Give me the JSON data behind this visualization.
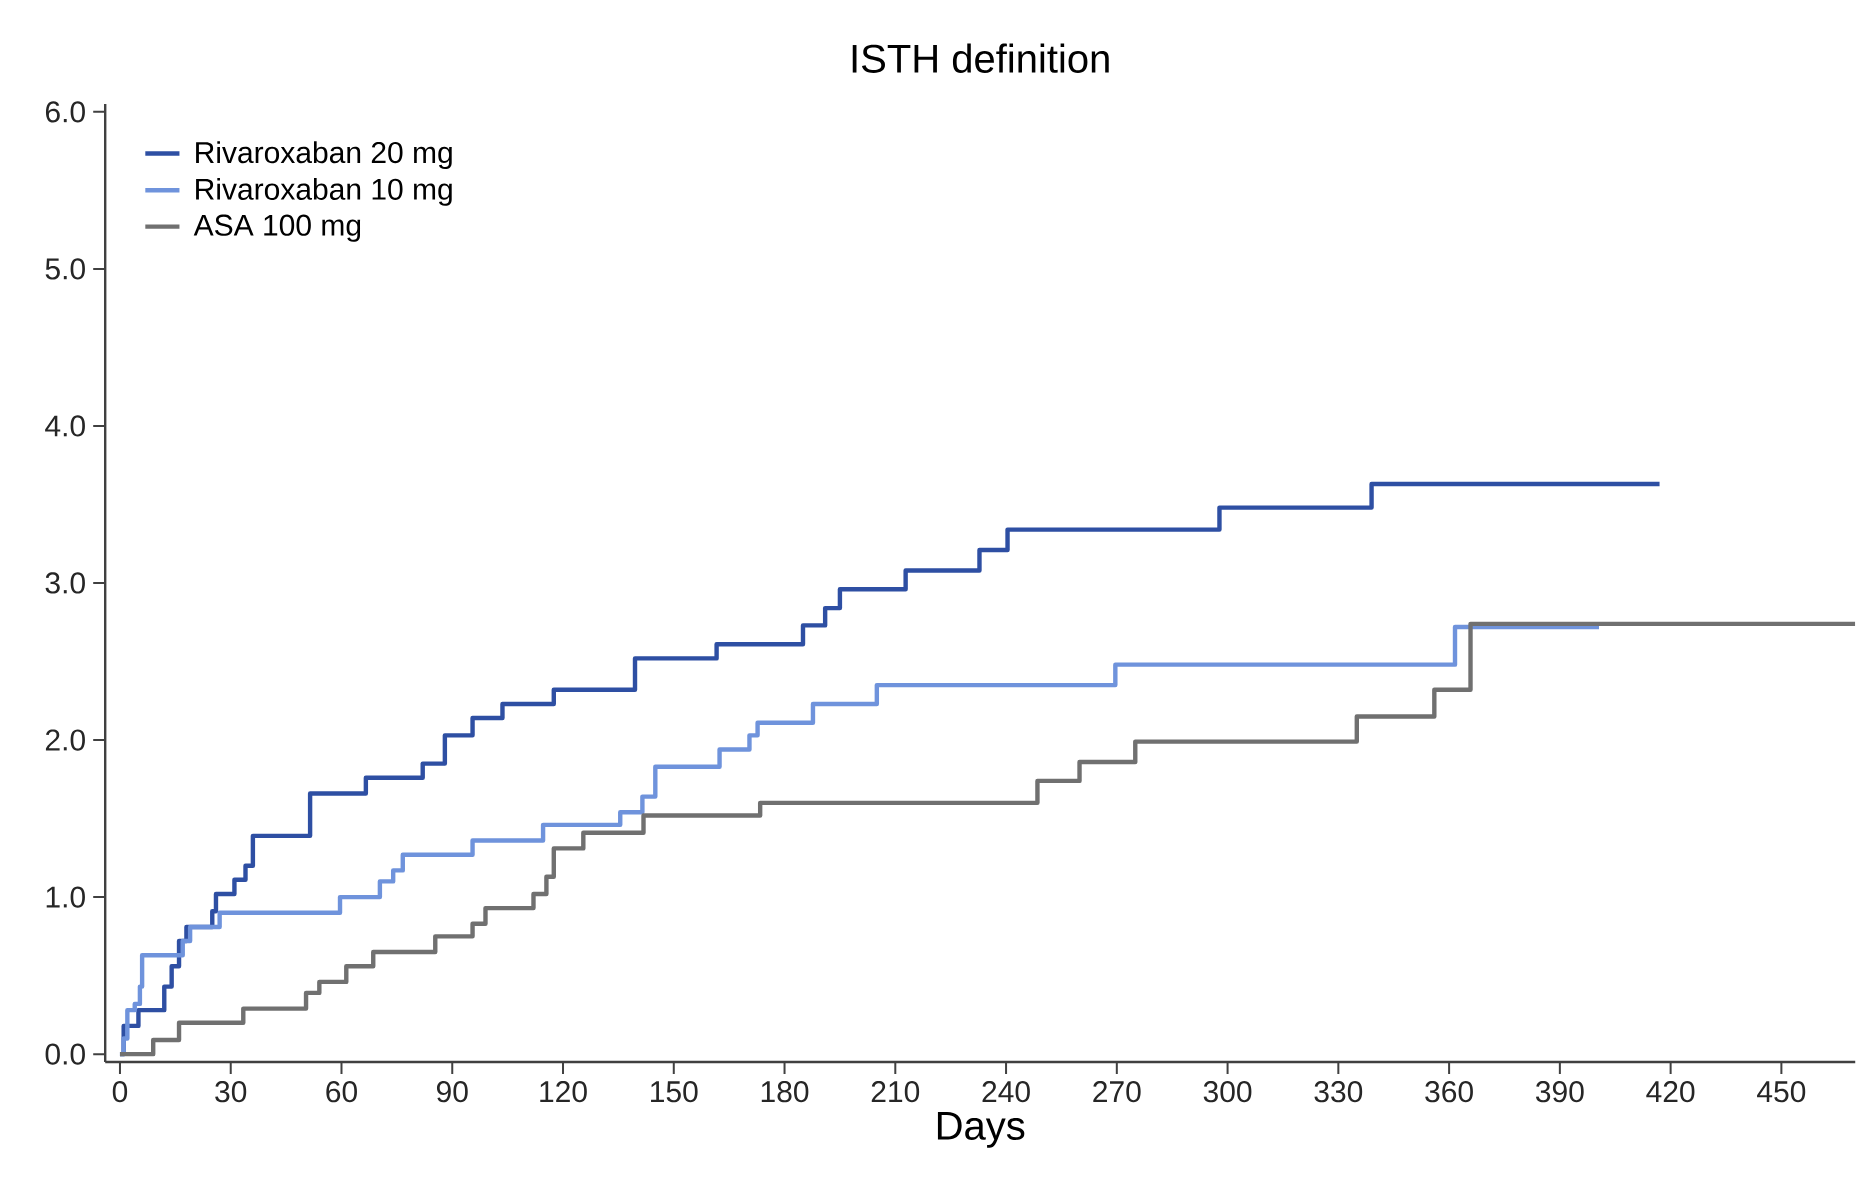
{
  "chart_data": {
    "type": "step",
    "title": "ISTH definition",
    "xlabel": "Days",
    "xlim": [
      -4,
      470
    ],
    "ylim": [
      -0.05,
      6.05
    ],
    "xticks": [
      0,
      30,
      60,
      90,
      120,
      150,
      180,
      210,
      240,
      270,
      300,
      330,
      360,
      390,
      420,
      450
    ],
    "yticks": [
      {
        "value": 0,
        "label": "0.0"
      },
      {
        "value": 1,
        "label": "1.0"
      },
      {
        "value": 2,
        "label": "2.0"
      },
      {
        "value": 3,
        "label": "3.0"
      },
      {
        "value": 4,
        "label": "4.0"
      },
      {
        "value": 5,
        "label": "5.0"
      },
      {
        "value": 6,
        "label": "6.0"
      }
    ],
    "grid": false,
    "legend": "top left",
    "marker": "none",
    "line_style": "solid",
    "series": [
      {
        "name": "Rivaroxaban 20 mg",
        "color": "#2e4fa3",
        "x": [
          0,
          1,
          3,
          5,
          12,
          14,
          16,
          18,
          25,
          26,
          31,
          34,
          36,
          51.5,
          66.6,
          82,
          88,
          95.5,
          103.6,
          117.5,
          139.5,
          161.6,
          185,
          191,
          195,
          212.8,
          232.8,
          240.4,
          297.8,
          339,
          417
        ],
        "values": [
          0,
          0.18,
          0.18,
          0.28,
          0.43,
          0.56,
          0.72,
          0.81,
          0.91,
          1.02,
          1.11,
          1.2,
          1.39,
          1.66,
          1.76,
          1.85,
          2.03,
          2.14,
          2.23,
          2.32,
          2.52,
          2.61,
          2.73,
          2.84,
          2.96,
          3.08,
          3.21,
          3.34,
          3.48,
          3.63,
          3.63
        ]
      },
      {
        "name": "Rivaroxaban 10 mg",
        "color": "#6f93dc",
        "x": [
          0,
          1,
          2,
          4,
          5.4,
          6,
          17,
          19,
          27,
          59.6,
          70.4,
          74,
          76.6,
          95.5,
          114.6,
          135.5,
          141.5,
          145,
          162.4,
          170.5,
          172.7,
          187.7,
          205,
          269.6,
          361.6,
          400.6
        ],
        "values": [
          0,
          0.1,
          0.28,
          0.32,
          0.43,
          0.63,
          0.72,
          0.81,
          0.9,
          1.0,
          1.1,
          1.17,
          1.27,
          1.36,
          1.46,
          1.54,
          1.64,
          1.83,
          1.94,
          2.03,
          2.11,
          2.23,
          2.35,
          2.48,
          2.72,
          2.72
        ]
      },
      {
        "name": "ASA 100 mg",
        "color": "#707070",
        "x": [
          0,
          9,
          16,
          33.4,
          50.4,
          54,
          61.3,
          68.6,
          85.4,
          95.5,
          99,
          112,
          115.5,
          117.5,
          125.5,
          141.8,
          173.4,
          248.5,
          259.9,
          275,
          335,
          356,
          365.8,
          470
        ],
        "values": [
          0,
          0.09,
          0.2,
          0.29,
          0.39,
          0.46,
          0.56,
          0.65,
          0.75,
          0.83,
          0.93,
          1.02,
          1.13,
          1.31,
          1.41,
          1.52,
          1.6,
          1.74,
          1.86,
          1.99,
          2.15,
          2.32,
          2.74,
          2.74
        ]
      }
    ]
  }
}
